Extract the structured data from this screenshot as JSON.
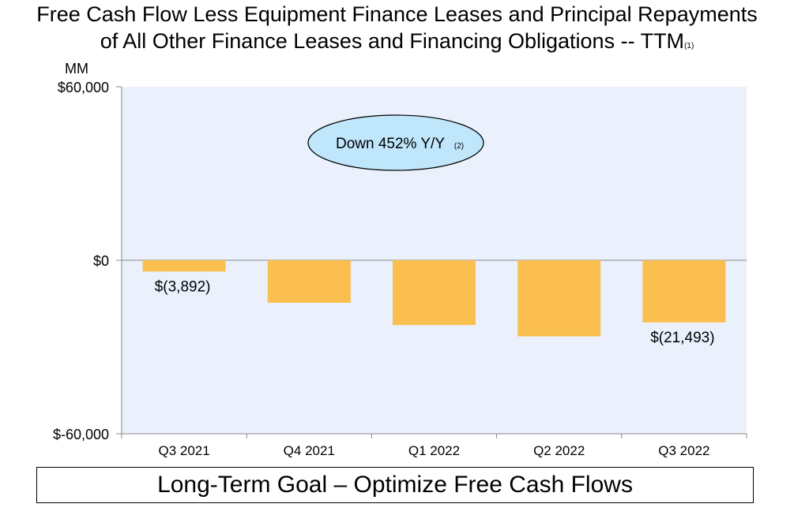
{
  "chart_data": {
    "type": "bar",
    "title_line1": "Free Cash Flow Less Equipment Finance Leases and Principal Repayments",
    "title_line2": "of All Other Finance Leases and Financing Obligations -- TTM",
    "title_footnote": "(1)",
    "unit_label": "MM",
    "categories": [
      "Q3 2021",
      "Q4 2021",
      "Q1 2022",
      "Q2 2022",
      "Q3 2022"
    ],
    "values": [
      -3892,
      -14700,
      -22400,
      -26300,
      -21493
    ],
    "value_labels": [
      "$(3,892)",
      "",
      "",
      "",
      "$(21,493)"
    ],
    "ylim": [
      -60000,
      60000
    ],
    "y_ticks": [
      {
        "value": 60000,
        "label": "$60,000"
      },
      {
        "value": 0,
        "label": "$0"
      },
      {
        "value": -60000,
        "label": "$-60,000"
      }
    ],
    "annotation": {
      "text": "Down 452% Y/Y",
      "footnote": "(2)"
    },
    "bar_color": "#FBBF4F",
    "plot_bg": "#EAF1FC",
    "annotation_fill": "#BFE6FA",
    "grid": false
  },
  "footer": {
    "goal_text": "Long-Term Goal – Optimize Free Cash Flows"
  }
}
